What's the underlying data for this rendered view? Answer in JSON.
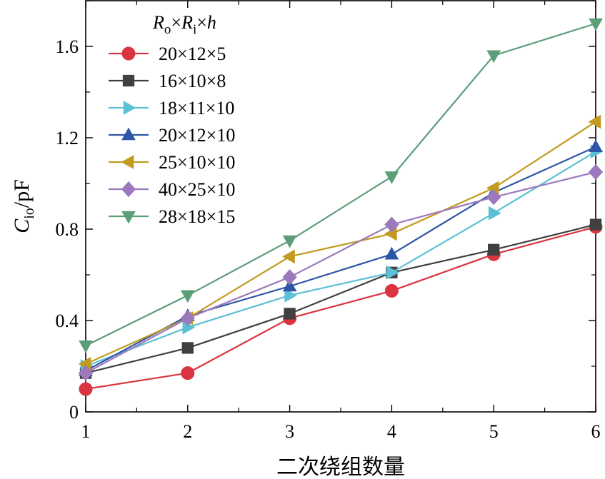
{
  "chart_data": {
    "type": "line",
    "xlabel": "二次绕组数量",
    "ylabel": {
      "main": "C",
      "sub": "io",
      "unit": "/pF"
    },
    "xlim": [
      1,
      6
    ],
    "ylim": [
      0,
      1.8
    ],
    "x_ticks": [
      "1",
      "2",
      "3",
      "4",
      "5",
      "6"
    ],
    "y_ticks": [
      "0",
      "0.4",
      "0.8",
      "1.2",
      "1.6"
    ],
    "legend_title": "Ro×Ri×h",
    "legend_position": "top-left",
    "grid": false,
    "x": [
      1,
      2,
      3,
      4,
      5,
      6
    ],
    "series": [
      {
        "name": "20×12×5",
        "color": "#d9343f",
        "marker": "circle",
        "values": [
          0.1,
          0.17,
          0.41,
          0.53,
          0.69,
          0.81
        ]
      },
      {
        "name": "16×10×8",
        "color": "#404040",
        "marker": "square",
        "values": [
          0.17,
          0.28,
          0.43,
          0.61,
          0.71,
          0.82
        ]
      },
      {
        "name": "18×11×10",
        "color": "#5bc0d6",
        "marker": "triangle-right",
        "values": [
          0.2,
          0.37,
          0.51,
          0.61,
          0.87,
          1.14
        ]
      },
      {
        "name": "20×12×10",
        "color": "#2e56a6",
        "marker": "triangle-up",
        "values": [
          0.18,
          0.42,
          0.55,
          0.69,
          0.96,
          1.16
        ]
      },
      {
        "name": "25×10×10",
        "color": "#c29a1f",
        "marker": "triangle-left",
        "values": [
          0.21,
          0.41,
          0.68,
          0.78,
          0.98,
          1.27
        ]
      },
      {
        "name": "40×25×10",
        "color": "#9c79bd",
        "marker": "diamond",
        "values": [
          0.17,
          0.41,
          0.59,
          0.82,
          0.94,
          1.05
        ]
      },
      {
        "name": "28×18×15",
        "color": "#5c9e78",
        "marker": "triangle-down",
        "values": [
          0.29,
          0.51,
          0.75,
          1.03,
          1.56,
          1.7
        ]
      }
    ]
  }
}
